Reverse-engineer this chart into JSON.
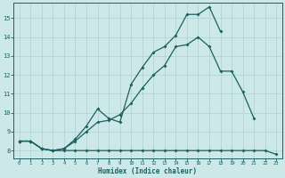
{
  "xlabel": "Humidex (Indice chaleur)",
  "xlim": [
    -0.5,
    23.5
  ],
  "ylim": [
    7.6,
    15.8
  ],
  "xticks": [
    0,
    1,
    2,
    3,
    4,
    5,
    6,
    7,
    8,
    9,
    10,
    11,
    12,
    13,
    14,
    15,
    16,
    17,
    18,
    19,
    20,
    21,
    22,
    23
  ],
  "yticks": [
    8,
    9,
    10,
    11,
    12,
    13,
    14,
    15
  ],
  "bg_color": "#cde8e8",
  "grid_color": "#b0d0d0",
  "line_color": "#1a6060",
  "curve1_x": [
    0,
    1,
    2,
    3,
    4,
    5,
    6,
    7,
    8,
    9,
    10,
    11,
    12,
    13,
    14,
    15,
    16,
    17,
    18,
    19,
    20,
    21,
    22,
    23
  ],
  "curve1_y": [
    8.5,
    8.5,
    8.1,
    8.0,
    8.0,
    8.0,
    8.0,
    8.0,
    8.0,
    8.0,
    8.0,
    8.0,
    8.0,
    8.0,
    8.0,
    8.0,
    8.0,
    8.0,
    8.0,
    8.0,
    8.0,
    8.0,
    8.0,
    7.8
  ],
  "curve2_x": [
    0,
    1,
    2,
    3,
    4,
    5,
    6,
    7,
    8,
    9,
    10,
    11,
    12,
    13,
    14,
    15,
    16,
    17,
    18,
    19,
    20,
    21
  ],
  "curve2_y": [
    8.5,
    8.5,
    8.1,
    8.0,
    8.1,
    8.5,
    9.0,
    9.5,
    9.6,
    9.9,
    10.5,
    11.3,
    12.0,
    12.5,
    13.5,
    13.6,
    14.0,
    13.5,
    12.2,
    12.2,
    11.1,
    9.7
  ],
  "curve3_x": [
    0,
    1,
    2,
    3,
    4,
    5,
    6,
    7,
    8,
    9,
    10,
    11,
    12,
    13,
    14,
    15,
    16,
    17,
    18
  ],
  "curve3_y": [
    8.5,
    8.5,
    8.1,
    8.0,
    8.1,
    8.6,
    9.3,
    10.2,
    9.7,
    9.5,
    11.5,
    12.4,
    13.2,
    13.5,
    14.1,
    15.2,
    15.2,
    15.6,
    14.3
  ]
}
